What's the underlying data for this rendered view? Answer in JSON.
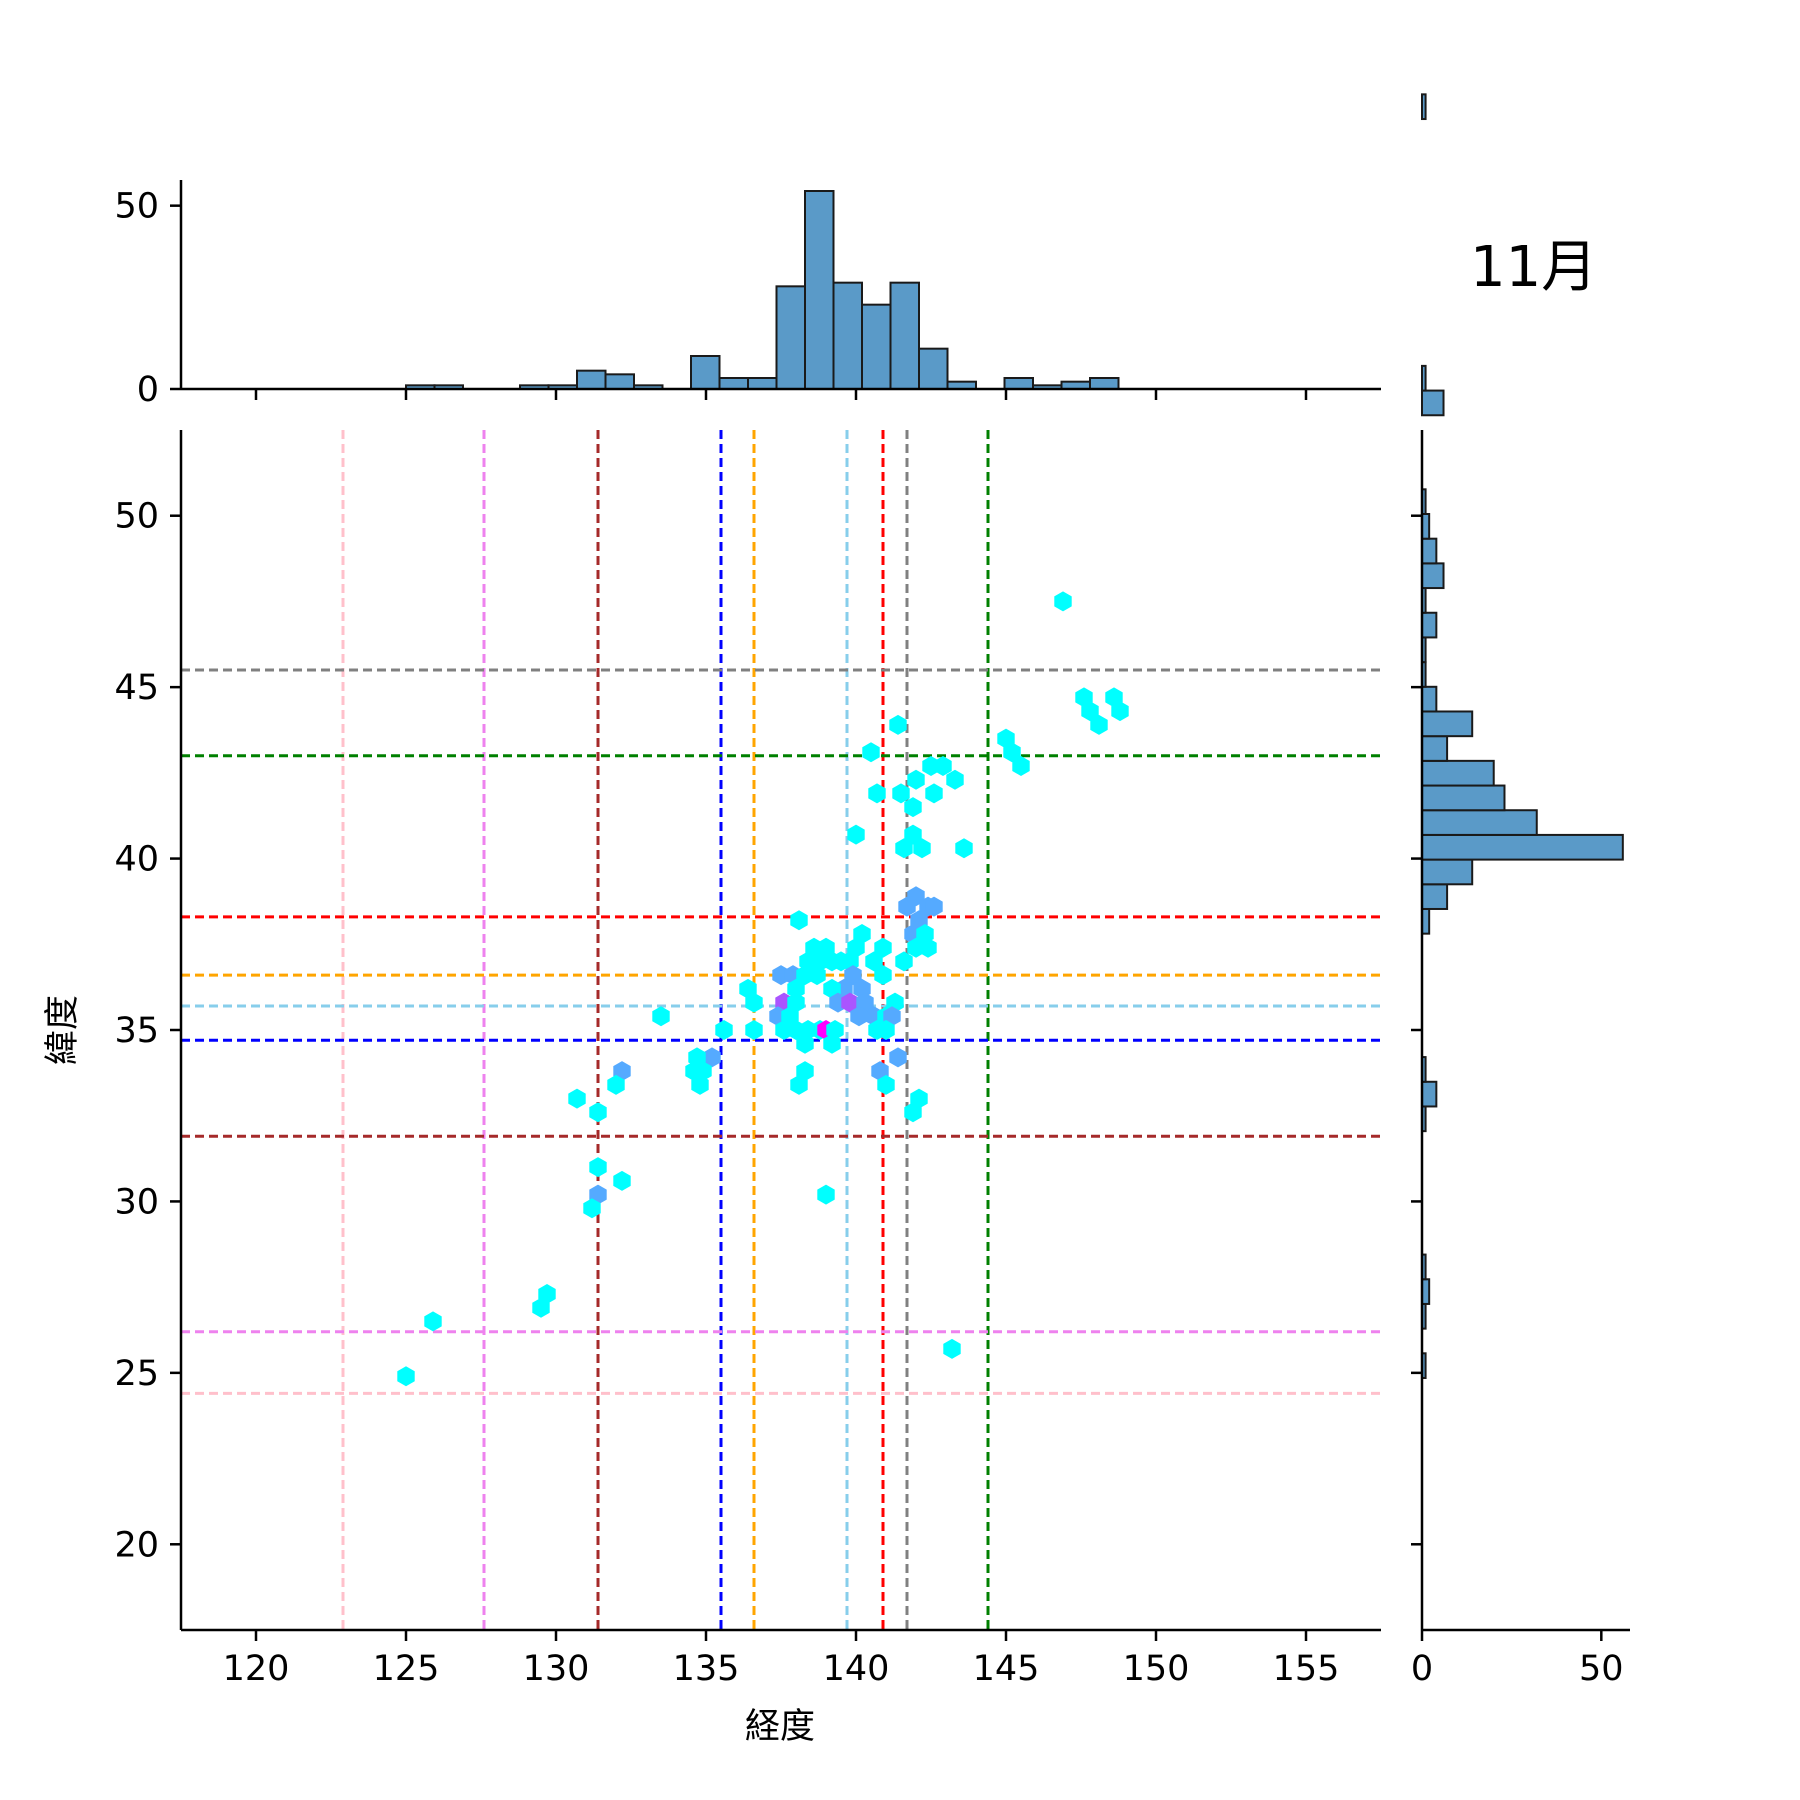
{
  "chart_data": {
    "type": "hexbin-joint",
    "title": "11月",
    "xlabel": "経度",
    "ylabel": "緯度",
    "xlim": [
      117.5,
      157.5
    ],
    "ylim": [
      17.5,
      52.5
    ],
    "xticks": [
      120,
      125,
      130,
      135,
      140,
      145,
      150,
      155
    ],
    "yticks": [
      20,
      25,
      30,
      35,
      40,
      45,
      50
    ],
    "top_hist": {
      "ylim": [
        0,
        57
      ],
      "yticks": [
        0,
        50
      ],
      "bin_start": 125.0,
      "bin_width": 0.95,
      "counts": [
        1,
        1,
        0,
        0,
        1,
        1,
        5,
        4,
        1,
        0,
        9,
        3,
        3,
        28,
        54,
        29,
        23,
        29,
        11,
        2,
        0,
        3,
        1,
        2,
        3
      ]
    },
    "right_hist": {
      "xlim": [
        0,
        58
      ],
      "xticks": [
        0,
        50
      ],
      "bin_start": 24.85,
      "bin_width": 0.72,
      "counts": [
        1,
        0,
        1,
        2,
        1,
        0,
        0,
        0,
        0,
        0,
        1,
        4,
        1,
        0,
        0,
        0,
        0,
        0,
        2,
        7,
        14,
        56,
        32,
        23,
        20,
        7,
        14,
        4,
        1,
        1,
        4,
        1,
        6,
        4,
        2,
        1,
        0,
        0,
        0,
        6,
        1,
        0,
        0,
        0,
        0,
        0,
        0,
        0,
        0,
        0,
        0,
        1
      ]
    },
    "vlines": [
      {
        "x": 122.9,
        "color": "#ffc0cb"
      },
      {
        "x": 127.6,
        "color": "#ee82ee"
      },
      {
        "x": 131.4,
        "color": "#a52a2a"
      },
      {
        "x": 135.5,
        "color": "#0000ff"
      },
      {
        "x": 136.6,
        "color": "#ffa500"
      },
      {
        "x": 139.7,
        "color": "#87ceeb"
      },
      {
        "x": 140.9,
        "color": "#ff0000"
      },
      {
        "x": 141.7,
        "color": "#808080"
      },
      {
        "x": 144.4,
        "color": "#008000"
      }
    ],
    "hlines": [
      {
        "y": 45.5,
        "color": "#808080"
      },
      {
        "y": 43.0,
        "color": "#008000"
      },
      {
        "y": 38.3,
        "color": "#ff0000"
      },
      {
        "y": 36.6,
        "color": "#ffa500"
      },
      {
        "y": 35.7,
        "color": "#87ceeb"
      },
      {
        "y": 34.7,
        "color": "#0000ff"
      },
      {
        "y": 31.9,
        "color": "#a52a2a"
      },
      {
        "y": 26.2,
        "color": "#ee82ee"
      },
      {
        "y": 24.4,
        "color": "#ffc0cb"
      }
    ],
    "hexbins": [
      {
        "x": 146.9,
        "y": 47.5,
        "c": 1
      },
      {
        "x": 147.6,
        "y": 44.7,
        "c": 1
      },
      {
        "x": 147.8,
        "y": 44.3,
        "c": 1
      },
      {
        "x": 148.1,
        "y": 43.9,
        "c": 1
      },
      {
        "x": 148.6,
        "y": 44.7,
        "c": 1
      },
      {
        "x": 148.8,
        "y": 44.3,
        "c": 1
      },
      {
        "x": 141.4,
        "y": 43.9,
        "c": 1
      },
      {
        "x": 140.5,
        "y": 43.1,
        "c": 1
      },
      {
        "x": 145.0,
        "y": 43.5,
        "c": 1
      },
      {
        "x": 145.2,
        "y": 43.1,
        "c": 1
      },
      {
        "x": 145.5,
        "y": 42.7,
        "c": 1
      },
      {
        "x": 140.7,
        "y": 41.9,
        "c": 1
      },
      {
        "x": 141.5,
        "y": 41.9,
        "c": 1
      },
      {
        "x": 142.0,
        "y": 42.3,
        "c": 1
      },
      {
        "x": 142.5,
        "y": 42.7,
        "c": 1
      },
      {
        "x": 142.9,
        "y": 42.7,
        "c": 1
      },
      {
        "x": 143.3,
        "y": 42.3,
        "c": 1
      },
      {
        "x": 142.6,
        "y": 41.9,
        "c": 1
      },
      {
        "x": 141.9,
        "y": 41.5,
        "c": 1
      },
      {
        "x": 140.0,
        "y": 40.7,
        "c": 1
      },
      {
        "x": 141.9,
        "y": 40.7,
        "c": 1
      },
      {
        "x": 141.6,
        "y": 40.3,
        "c": 1
      },
      {
        "x": 142.2,
        "y": 40.3,
        "c": 1
      },
      {
        "x": 143.6,
        "y": 40.3,
        "c": 1
      },
      {
        "x": 141.7,
        "y": 38.6,
        "c": 2
      },
      {
        "x": 142.0,
        "y": 38.9,
        "c": 2
      },
      {
        "x": 142.4,
        "y": 38.6,
        "c": 2
      },
      {
        "x": 142.1,
        "y": 38.2,
        "c": 2
      },
      {
        "x": 142.6,
        "y": 38.6,
        "c": 2
      },
      {
        "x": 141.9,
        "y": 37.8,
        "c": 2
      },
      {
        "x": 142.3,
        "y": 37.8,
        "c": 1
      },
      {
        "x": 142.0,
        "y": 37.4,
        "c": 1
      },
      {
        "x": 142.4,
        "y": 37.4,
        "c": 1
      },
      {
        "x": 141.6,
        "y": 37.0,
        "c": 1
      },
      {
        "x": 138.1,
        "y": 38.2,
        "c": 1
      },
      {
        "x": 140.2,
        "y": 37.8,
        "c": 1
      },
      {
        "x": 140.0,
        "y": 37.4,
        "c": 1
      },
      {
        "x": 140.9,
        "y": 37.4,
        "c": 1
      },
      {
        "x": 139.8,
        "y": 37.0,
        "c": 1
      },
      {
        "x": 140.6,
        "y": 37.0,
        "c": 1
      },
      {
        "x": 138.6,
        "y": 37.4,
        "c": 1
      },
      {
        "x": 139.0,
        "y": 37.4,
        "c": 1
      },
      {
        "x": 138.4,
        "y": 37.0,
        "c": 1
      },
      {
        "x": 138.8,
        "y": 37.0,
        "c": 1
      },
      {
        "x": 139.2,
        "y": 37.0,
        "c": 1
      },
      {
        "x": 139.5,
        "y": 37.0,
        "c": 1
      },
      {
        "x": 137.5,
        "y": 36.6,
        "c": 2
      },
      {
        "x": 137.9,
        "y": 36.6,
        "c": 2
      },
      {
        "x": 138.3,
        "y": 36.6,
        "c": 1
      },
      {
        "x": 138.7,
        "y": 36.6,
        "c": 1
      },
      {
        "x": 139.9,
        "y": 36.6,
        "c": 2
      },
      {
        "x": 140.2,
        "y": 36.2,
        "c": 2
      },
      {
        "x": 139.6,
        "y": 36.2,
        "c": 2
      },
      {
        "x": 140.9,
        "y": 36.6,
        "c": 1
      },
      {
        "x": 136.4,
        "y": 36.2,
        "c": 1
      },
      {
        "x": 136.6,
        "y": 35.8,
        "c": 1
      },
      {
        "x": 137.6,
        "y": 35.8,
        "c": 3
      },
      {
        "x": 138.0,
        "y": 36.2,
        "c": 1
      },
      {
        "x": 138.0,
        "y": 35.8,
        "c": 1
      },
      {
        "x": 139.2,
        "y": 36.2,
        "c": 1
      },
      {
        "x": 139.4,
        "y": 35.8,
        "c": 2
      },
      {
        "x": 139.8,
        "y": 35.8,
        "c": 3
      },
      {
        "x": 140.3,
        "y": 35.8,
        "c": 2
      },
      {
        "x": 140.6,
        "y": 35.4,
        "c": 2
      },
      {
        "x": 140.1,
        "y": 35.4,
        "c": 2
      },
      {
        "x": 141.3,
        "y": 35.8,
        "c": 1
      },
      {
        "x": 141.0,
        "y": 35.4,
        "c": 1
      },
      {
        "x": 141.2,
        "y": 35.4,
        "c": 2
      },
      {
        "x": 140.7,
        "y": 35.0,
        "c": 1
      },
      {
        "x": 141.0,
        "y": 35.0,
        "c": 1
      },
      {
        "x": 137.4,
        "y": 35.4,
        "c": 2
      },
      {
        "x": 137.8,
        "y": 35.4,
        "c": 1
      },
      {
        "x": 137.6,
        "y": 35.0,
        "c": 1
      },
      {
        "x": 138.0,
        "y": 35.0,
        "c": 1
      },
      {
        "x": 138.4,
        "y": 35.0,
        "c": 1
      },
      {
        "x": 138.8,
        "y": 35.0,
        "c": 1
      },
      {
        "x": 139.0,
        "y": 35.0,
        "c": 4
      },
      {
        "x": 139.3,
        "y": 35.0,
        "c": 1
      },
      {
        "x": 136.6,
        "y": 35.0,
        "c": 1
      },
      {
        "x": 135.6,
        "y": 35.0,
        "c": 1
      },
      {
        "x": 135.2,
        "y": 34.2,
        "c": 2
      },
      {
        "x": 134.7,
        "y": 34.2,
        "c": 1
      },
      {
        "x": 134.6,
        "y": 33.8,
        "c": 1
      },
      {
        "x": 134.9,
        "y": 33.8,
        "c": 1
      },
      {
        "x": 134.8,
        "y": 33.4,
        "c": 1
      },
      {
        "x": 133.5,
        "y": 35.4,
        "c": 1
      },
      {
        "x": 138.3,
        "y": 34.6,
        "c": 1
      },
      {
        "x": 139.2,
        "y": 34.6,
        "c": 1
      },
      {
        "x": 138.3,
        "y": 33.8,
        "c": 1
      },
      {
        "x": 138.1,
        "y": 33.4,
        "c": 1
      },
      {
        "x": 140.8,
        "y": 33.8,
        "c": 2
      },
      {
        "x": 141.0,
        "y": 33.4,
        "c": 1
      },
      {
        "x": 141.4,
        "y": 34.2,
        "c": 2
      },
      {
        "x": 142.1,
        "y": 33.0,
        "c": 1
      },
      {
        "x": 141.9,
        "y": 32.6,
        "c": 1
      },
      {
        "x": 132.2,
        "y": 33.8,
        "c": 2
      },
      {
        "x": 132.0,
        "y": 33.4,
        "c": 1
      },
      {
        "x": 130.7,
        "y": 33.0,
        "c": 1
      },
      {
        "x": 131.4,
        "y": 32.6,
        "c": 1
      },
      {
        "x": 131.4,
        "y": 31.0,
        "c": 1
      },
      {
        "x": 131.4,
        "y": 30.2,
        "c": 2
      },
      {
        "x": 131.2,
        "y": 29.8,
        "c": 1
      },
      {
        "x": 132.2,
        "y": 30.6,
        "c": 1
      },
      {
        "x": 139.0,
        "y": 30.2,
        "c": 1
      },
      {
        "x": 129.5,
        "y": 26.9,
        "c": 1
      },
      {
        "x": 129.7,
        "y": 27.3,
        "c": 1
      },
      {
        "x": 125.9,
        "y": 26.5,
        "c": 1
      },
      {
        "x": 125.0,
        "y": 24.9,
        "c": 1
      },
      {
        "x": 143.2,
        "y": 25.7,
        "c": 1
      }
    ],
    "colormap": [
      "#00ffff",
      "#55aaff",
      "#aa55ff",
      "#ff00ff"
    ]
  }
}
